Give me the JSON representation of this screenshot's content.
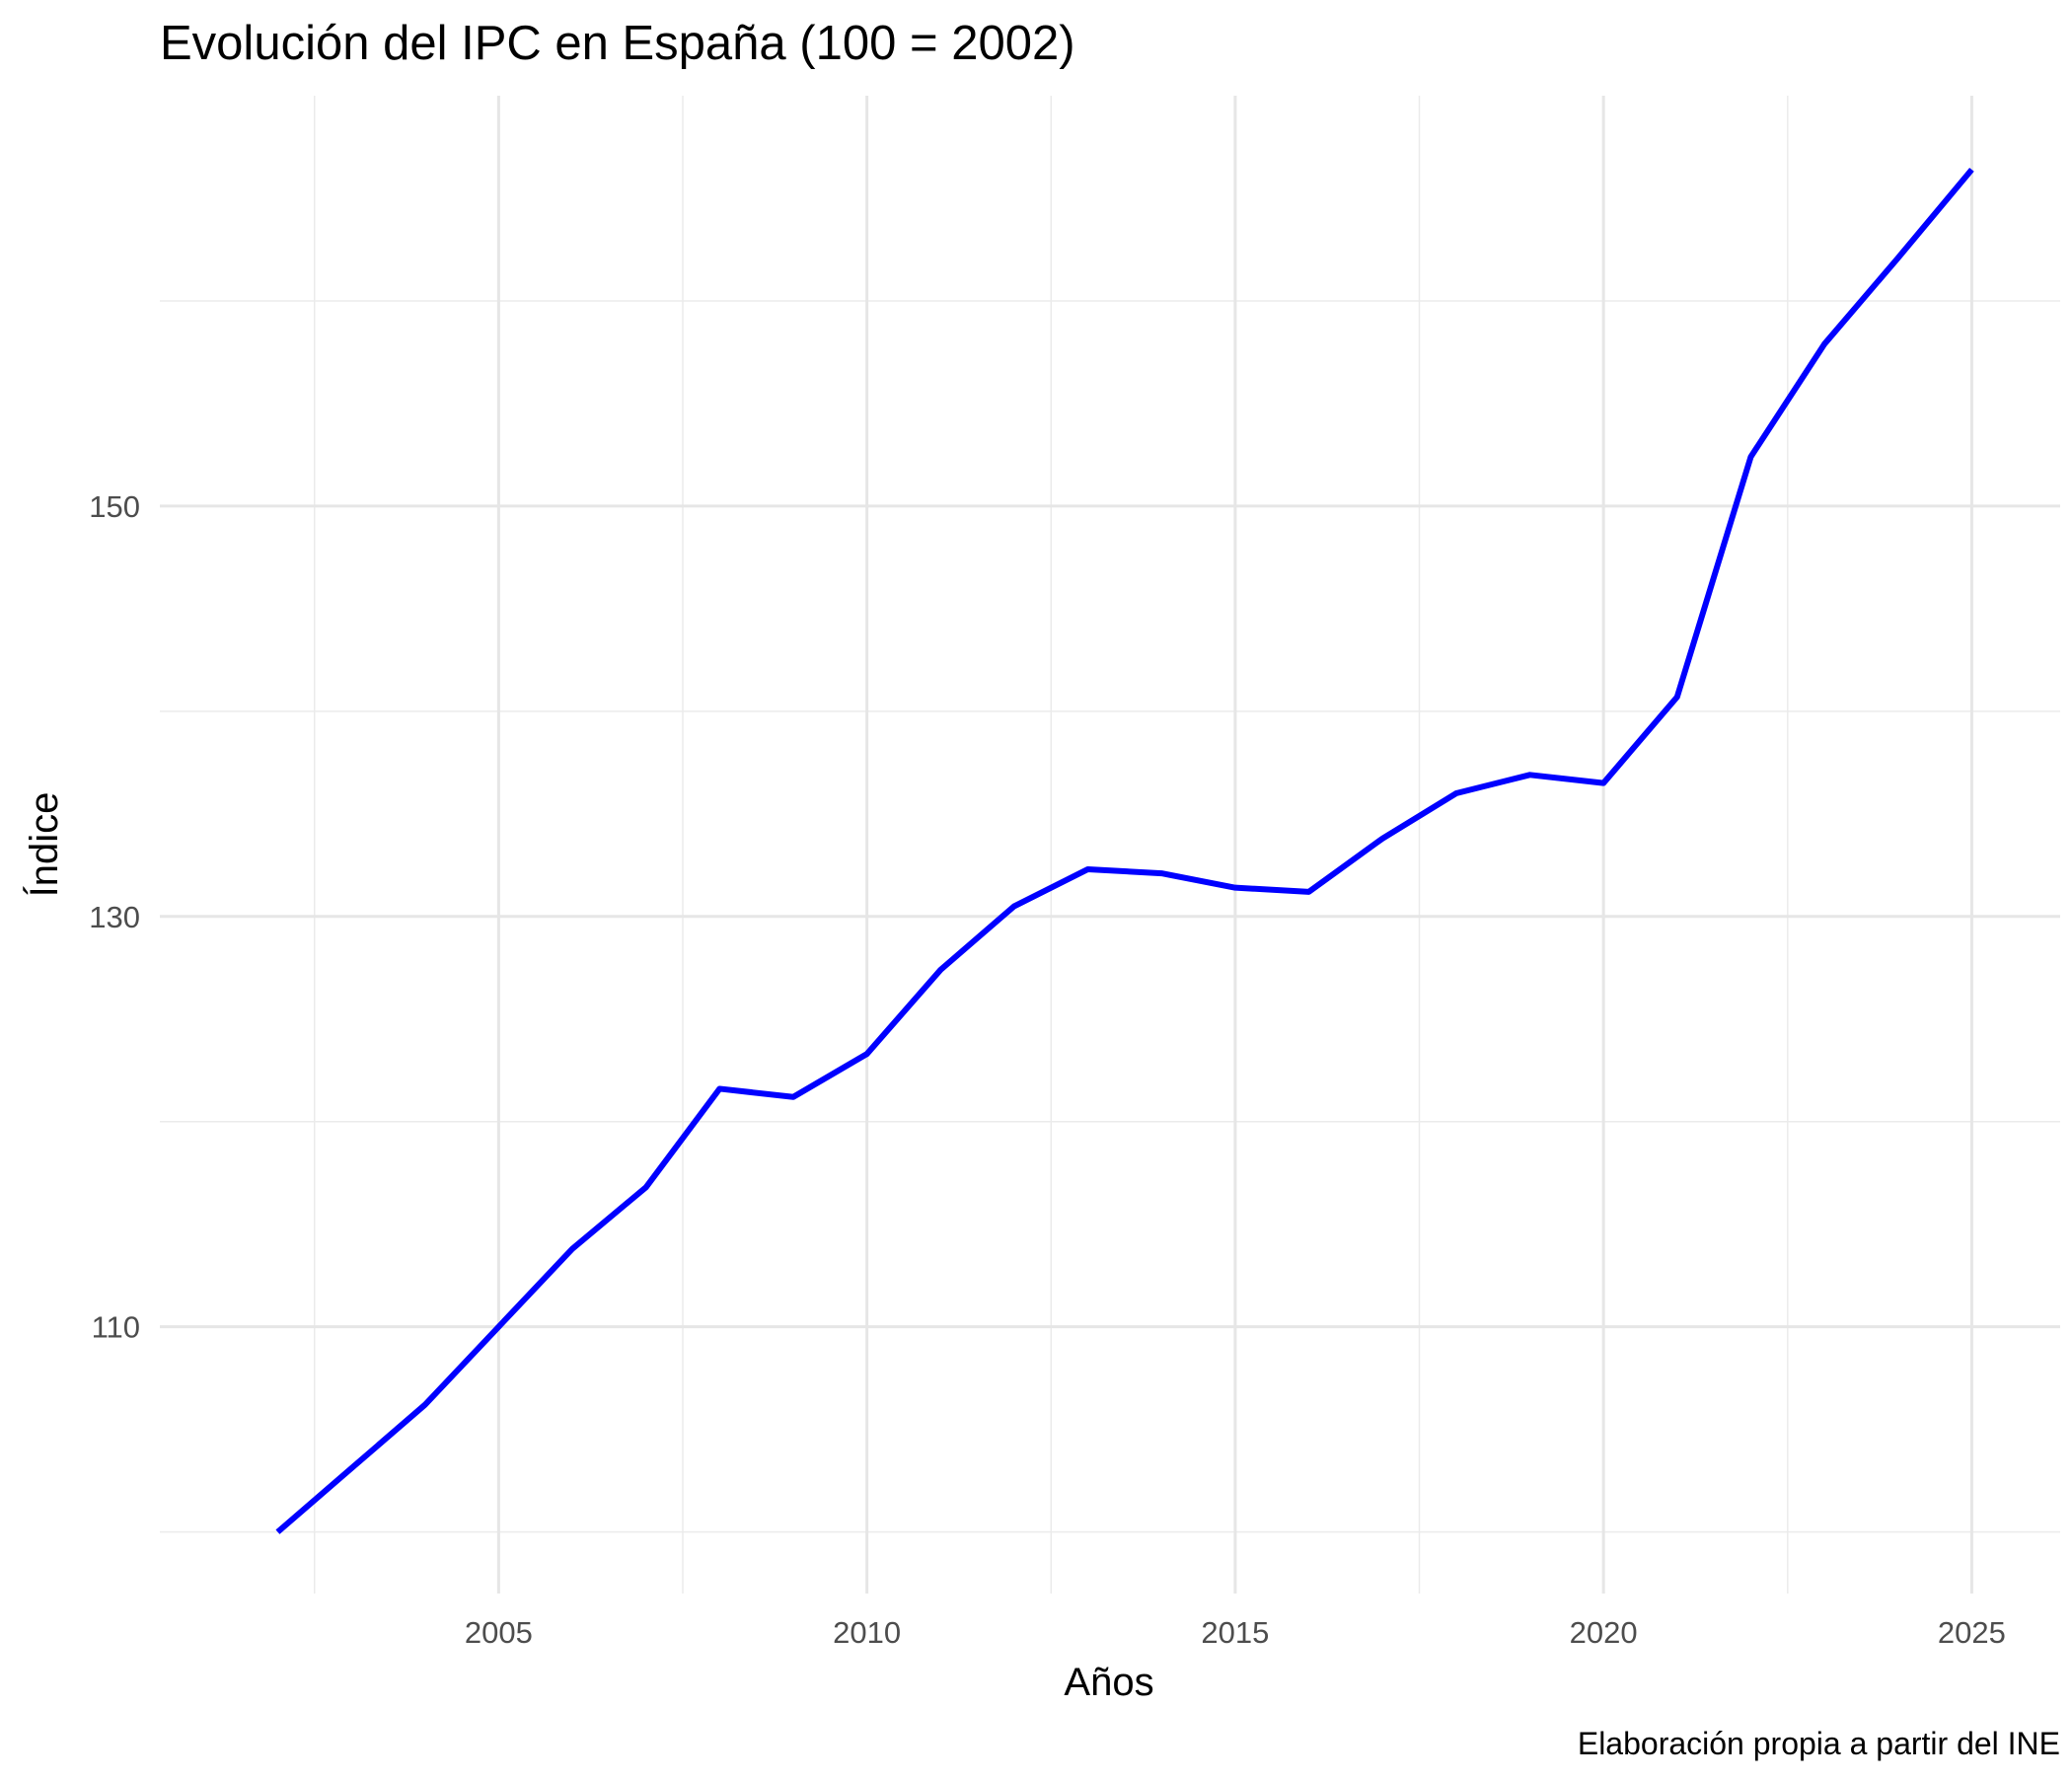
{
  "chart_data": {
    "type": "line",
    "title": "Evolución del IPC en España (100 = 2002)",
    "xlabel": "Años",
    "ylabel": "Índice",
    "caption": "Elaboración propia a partir del INE",
    "x": [
      2002,
      2003,
      2004,
      2005,
      2006,
      2007,
      2008,
      2009,
      2010,
      2011,
      2012,
      2013,
      2014,
      2015,
      2016,
      2017,
      2018,
      2019,
      2020,
      2021,
      2022,
      2023,
      2024,
      2025
    ],
    "series": [
      {
        "name": "IPC",
        "color": "#0000ff",
        "values": [
          100.0,
          103.1,
          106.2,
          110.0,
          113.8,
          116.8,
          121.6,
          121.2,
          123.3,
          127.4,
          130.5,
          132.3,
          132.1,
          131.4,
          131.2,
          133.8,
          136.0,
          136.9,
          136.5,
          140.7,
          152.4,
          157.9,
          162.1,
          166.4
        ]
      }
    ],
    "xlim": [
      2000.4,
      2026.2
    ],
    "ylim": [
      97.0,
      170.0
    ],
    "x_ticks": [
      "2005",
      "2010",
      "2015",
      "2020",
      "2025"
    ],
    "y_ticks": [
      "110",
      "130",
      "150"
    ],
    "grid": true
  }
}
